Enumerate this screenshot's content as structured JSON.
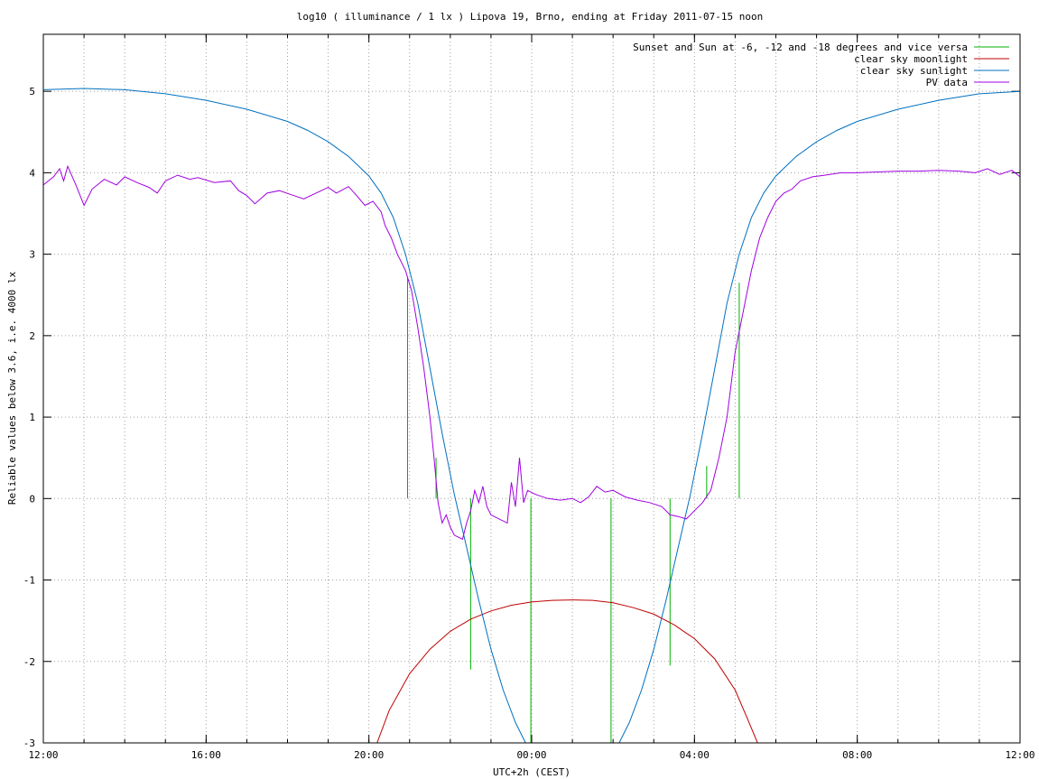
{
  "chart_data": {
    "type": "line",
    "title": "log10 ( illuminance / 1 lx ) Lipova 19, Brno, ending at Friday 2011-07-15 noon",
    "xlabel": "UTC+2h (CEST)",
    "ylabel": "Reliable values below 3.6, i.e. 4000 lx",
    "x_unit": "hours since 2011-07-14 12:00 (CEST)",
    "xlim": [
      0,
      24
    ],
    "ylim": [
      -3,
      5.7
    ],
    "grid": true,
    "legend_position": "top-right",
    "x_ticks": [
      {
        "value": 0,
        "label": "12:00"
      },
      {
        "value": 4,
        "label": "16:00"
      },
      {
        "value": 8,
        "label": "20:00"
      },
      {
        "value": 12,
        "label": "00:00"
      },
      {
        "value": 16,
        "label": "04:00"
      },
      {
        "value": 20,
        "label": "08:00"
      },
      {
        "value": 24,
        "label": "12:00"
      }
    ],
    "x_minor_grid_step": 1,
    "y_ticks": [
      {
        "value": 5,
        "label": "5"
      },
      {
        "value": 4,
        "label": "4"
      },
      {
        "value": 3,
        "label": "3"
      },
      {
        "value": 2,
        "label": "2"
      },
      {
        "value": 1,
        "label": "1"
      },
      {
        "value": 0,
        "label": "0"
      },
      {
        "value": -1,
        "label": "-1"
      },
      {
        "value": -2,
        "label": "-2"
      },
      {
        "value": -3,
        "label": "-3"
      }
    ],
    "series": [
      {
        "name": "Sunset and Sun at -6, -12 and -18 degrees and vice versa",
        "color": "#00b000",
        "style": "impulses",
        "impulses": [
          {
            "x": 8.95,
            "y0": 0,
            "y1": 2.72
          },
          {
            "x": 9.65,
            "y0": 0,
            "y1": 0.5
          },
          {
            "x": 10.5,
            "y0": 0,
            "y1": -2.1
          },
          {
            "x": 11.98,
            "y0": 0,
            "y1": -3.0
          },
          {
            "x": 13.95,
            "y0": 0,
            "y1": -3.0
          },
          {
            "x": 15.4,
            "y0": 0,
            "y1": -2.05
          },
          {
            "x": 16.3,
            "y0": 0,
            "y1": 0.4
          },
          {
            "x": 17.1,
            "y0": 0,
            "y1": 2.65
          }
        ]
      },
      {
        "name": "clear sky moonlight",
        "color": "#c00000",
        "points": [
          [
            8.2,
            -3.0
          ],
          [
            8.5,
            -2.6
          ],
          [
            9.0,
            -2.15
          ],
          [
            9.5,
            -1.85
          ],
          [
            10.0,
            -1.63
          ],
          [
            10.5,
            -1.48
          ],
          [
            11.0,
            -1.38
          ],
          [
            11.5,
            -1.31
          ],
          [
            12.0,
            -1.27
          ],
          [
            12.5,
            -1.25
          ],
          [
            13.0,
            -1.245
          ],
          [
            13.5,
            -1.25
          ],
          [
            14.0,
            -1.28
          ],
          [
            14.5,
            -1.34
          ],
          [
            15.0,
            -1.42
          ],
          [
            15.5,
            -1.55
          ],
          [
            16.0,
            -1.72
          ],
          [
            16.5,
            -1.97
          ],
          [
            17.0,
            -2.35
          ],
          [
            17.3,
            -2.7
          ],
          [
            17.55,
            -3.0
          ]
        ]
      },
      {
        "name": "clear sky sunlight",
        "color": "#0070c0",
        "points": [
          [
            0,
            5.02
          ],
          [
            1,
            5.035
          ],
          [
            2,
            5.02
          ],
          [
            3,
            4.97
          ],
          [
            4,
            4.89
          ],
          [
            5,
            4.78
          ],
          [
            6,
            4.63
          ],
          [
            6.5,
            4.52
          ],
          [
            7,
            4.38
          ],
          [
            7.5,
            4.2
          ],
          [
            8,
            3.96
          ],
          [
            8.3,
            3.75
          ],
          [
            8.6,
            3.45
          ],
          [
            8.9,
            3.0
          ],
          [
            9.2,
            2.4
          ],
          [
            9.5,
            1.6
          ],
          [
            9.8,
            0.8
          ],
          [
            10.1,
            0.05
          ],
          [
            10.4,
            -0.6
          ],
          [
            10.7,
            -1.25
          ],
          [
            11.0,
            -1.85
          ],
          [
            11.3,
            -2.35
          ],
          [
            11.6,
            -2.75
          ],
          [
            11.85,
            -3.0
          ],
          [
            14.15,
            -3.0
          ],
          [
            14.4,
            -2.75
          ],
          [
            14.7,
            -2.35
          ],
          [
            15.0,
            -1.85
          ],
          [
            15.3,
            -1.25
          ],
          [
            15.6,
            -0.6
          ],
          [
            15.9,
            0.05
          ],
          [
            16.2,
            0.8
          ],
          [
            16.5,
            1.6
          ],
          [
            16.8,
            2.4
          ],
          [
            17.1,
            3.0
          ],
          [
            17.4,
            3.45
          ],
          [
            17.7,
            3.75
          ],
          [
            18.0,
            3.96
          ],
          [
            18.5,
            4.2
          ],
          [
            19,
            4.38
          ],
          [
            19.5,
            4.52
          ],
          [
            20,
            4.63
          ],
          [
            21,
            4.78
          ],
          [
            22,
            4.89
          ],
          [
            23,
            4.97
          ],
          [
            24,
            5.0
          ]
        ]
      },
      {
        "name": "PV data",
        "color": "#a000e0",
        "points": [
          [
            0,
            3.85
          ],
          [
            0.25,
            3.95
          ],
          [
            0.4,
            4.05
          ],
          [
            0.5,
            3.9
          ],
          [
            0.6,
            4.08
          ],
          [
            0.8,
            3.85
          ],
          [
            1.0,
            3.6
          ],
          [
            1.2,
            3.8
          ],
          [
            1.5,
            3.92
          ],
          [
            1.8,
            3.85
          ],
          [
            2.0,
            3.95
          ],
          [
            2.3,
            3.88
          ],
          [
            2.6,
            3.82
          ],
          [
            2.8,
            3.75
          ],
          [
            3.0,
            3.9
          ],
          [
            3.3,
            3.97
          ],
          [
            3.6,
            3.92
          ],
          [
            3.8,
            3.94
          ],
          [
            4.2,
            3.88
          ],
          [
            4.6,
            3.9
          ],
          [
            4.8,
            3.78
          ],
          [
            5.0,
            3.72
          ],
          [
            5.2,
            3.62
          ],
          [
            5.5,
            3.75
          ],
          [
            5.8,
            3.78
          ],
          [
            6.1,
            3.73
          ],
          [
            6.4,
            3.68
          ],
          [
            6.7,
            3.75
          ],
          [
            7.0,
            3.82
          ],
          [
            7.2,
            3.75
          ],
          [
            7.5,
            3.83
          ],
          [
            7.7,
            3.72
          ],
          [
            7.9,
            3.6
          ],
          [
            8.1,
            3.65
          ],
          [
            8.3,
            3.52
          ],
          [
            8.4,
            3.35
          ],
          [
            8.55,
            3.2
          ],
          [
            8.7,
            3.0
          ],
          [
            8.9,
            2.8
          ],
          [
            9.05,
            2.55
          ],
          [
            9.2,
            2.1
          ],
          [
            9.35,
            1.6
          ],
          [
            9.5,
            1.0
          ],
          [
            9.6,
            0.5
          ],
          [
            9.7,
            -0.05
          ],
          [
            9.8,
            -0.3
          ],
          [
            9.9,
            -0.2
          ],
          [
            10.0,
            -0.35
          ],
          [
            10.1,
            -0.45
          ],
          [
            10.3,
            -0.5
          ],
          [
            10.4,
            -0.3
          ],
          [
            10.5,
            -0.15
          ],
          [
            10.6,
            0.1
          ],
          [
            10.7,
            -0.05
          ],
          [
            10.8,
            0.15
          ],
          [
            10.9,
            -0.1
          ],
          [
            11.0,
            -0.2
          ],
          [
            11.2,
            -0.25
          ],
          [
            11.4,
            -0.3
          ],
          [
            11.5,
            0.2
          ],
          [
            11.6,
            -0.1
          ],
          [
            11.7,
            0.5
          ],
          [
            11.8,
            -0.05
          ],
          [
            11.9,
            0.1
          ],
          [
            12.1,
            0.05
          ],
          [
            12.4,
            0.0
          ],
          [
            12.7,
            -0.02
          ],
          [
            13.0,
            0.0
          ],
          [
            13.2,
            -0.05
          ],
          [
            13.4,
            0.02
          ],
          [
            13.6,
            0.15
          ],
          [
            13.8,
            0.08
          ],
          [
            14.0,
            0.1
          ],
          [
            14.3,
            0.02
          ],
          [
            14.6,
            -0.02
          ],
          [
            14.9,
            -0.05
          ],
          [
            15.2,
            -0.1
          ],
          [
            15.4,
            -0.2
          ],
          [
            15.6,
            -0.22
          ],
          [
            15.8,
            -0.25
          ],
          [
            16.0,
            -0.15
          ],
          [
            16.2,
            -0.05
          ],
          [
            16.4,
            0.1
          ],
          [
            16.6,
            0.5
          ],
          [
            16.8,
            1.0
          ],
          [
            17.0,
            1.8
          ],
          [
            17.2,
            2.3
          ],
          [
            17.4,
            2.8
          ],
          [
            17.6,
            3.2
          ],
          [
            17.8,
            3.45
          ],
          [
            18.0,
            3.65
          ],
          [
            18.2,
            3.75
          ],
          [
            18.4,
            3.8
          ],
          [
            18.6,
            3.9
          ],
          [
            18.9,
            3.95
          ],
          [
            19.2,
            3.97
          ],
          [
            19.6,
            4.0
          ],
          [
            20.0,
            4.0
          ],
          [
            20.5,
            4.01
          ],
          [
            21.0,
            4.02
          ],
          [
            21.5,
            4.02
          ],
          [
            22.0,
            4.03
          ],
          [
            22.5,
            4.02
          ],
          [
            22.9,
            4.0
          ],
          [
            23.2,
            4.05
          ],
          [
            23.5,
            3.98
          ],
          [
            23.8,
            4.03
          ],
          [
            24.0,
            3.95
          ]
        ]
      }
    ]
  }
}
